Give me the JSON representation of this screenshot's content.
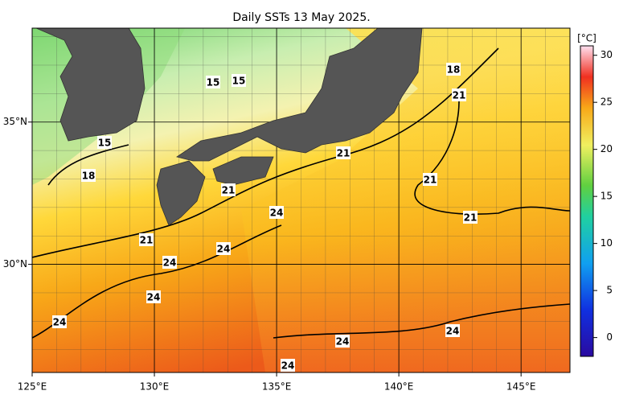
{
  "map": {
    "title": "Daily SSTs 13 May 2025.",
    "xlim": [
      125,
      147
    ],
    "ylim": [
      26.2,
      38.3
    ],
    "xticks": [
      {
        "value": 125,
        "label": "125°E"
      },
      {
        "value": 130,
        "label": "130°E"
      },
      {
        "value": 135,
        "label": "135°E"
      },
      {
        "value": 140,
        "label": "140°E"
      },
      {
        "value": 145,
        "label": "145°E"
      }
    ],
    "yticks": [
      {
        "value": 30,
        "label": "30°N"
      },
      {
        "value": 35,
        "label": "35°N"
      }
    ],
    "contour_labels": [
      15,
      15,
      15,
      18,
      18,
      21,
      21,
      21,
      21,
      21,
      21,
      24,
      24,
      24,
      24,
      24,
      24,
      24,
      24
    ],
    "colorbar": {
      "label": "[°C]",
      "range": [
        -2,
        31
      ],
      "ticks": [
        0,
        5,
        10,
        15,
        20,
        25,
        30
      ]
    }
  }
}
